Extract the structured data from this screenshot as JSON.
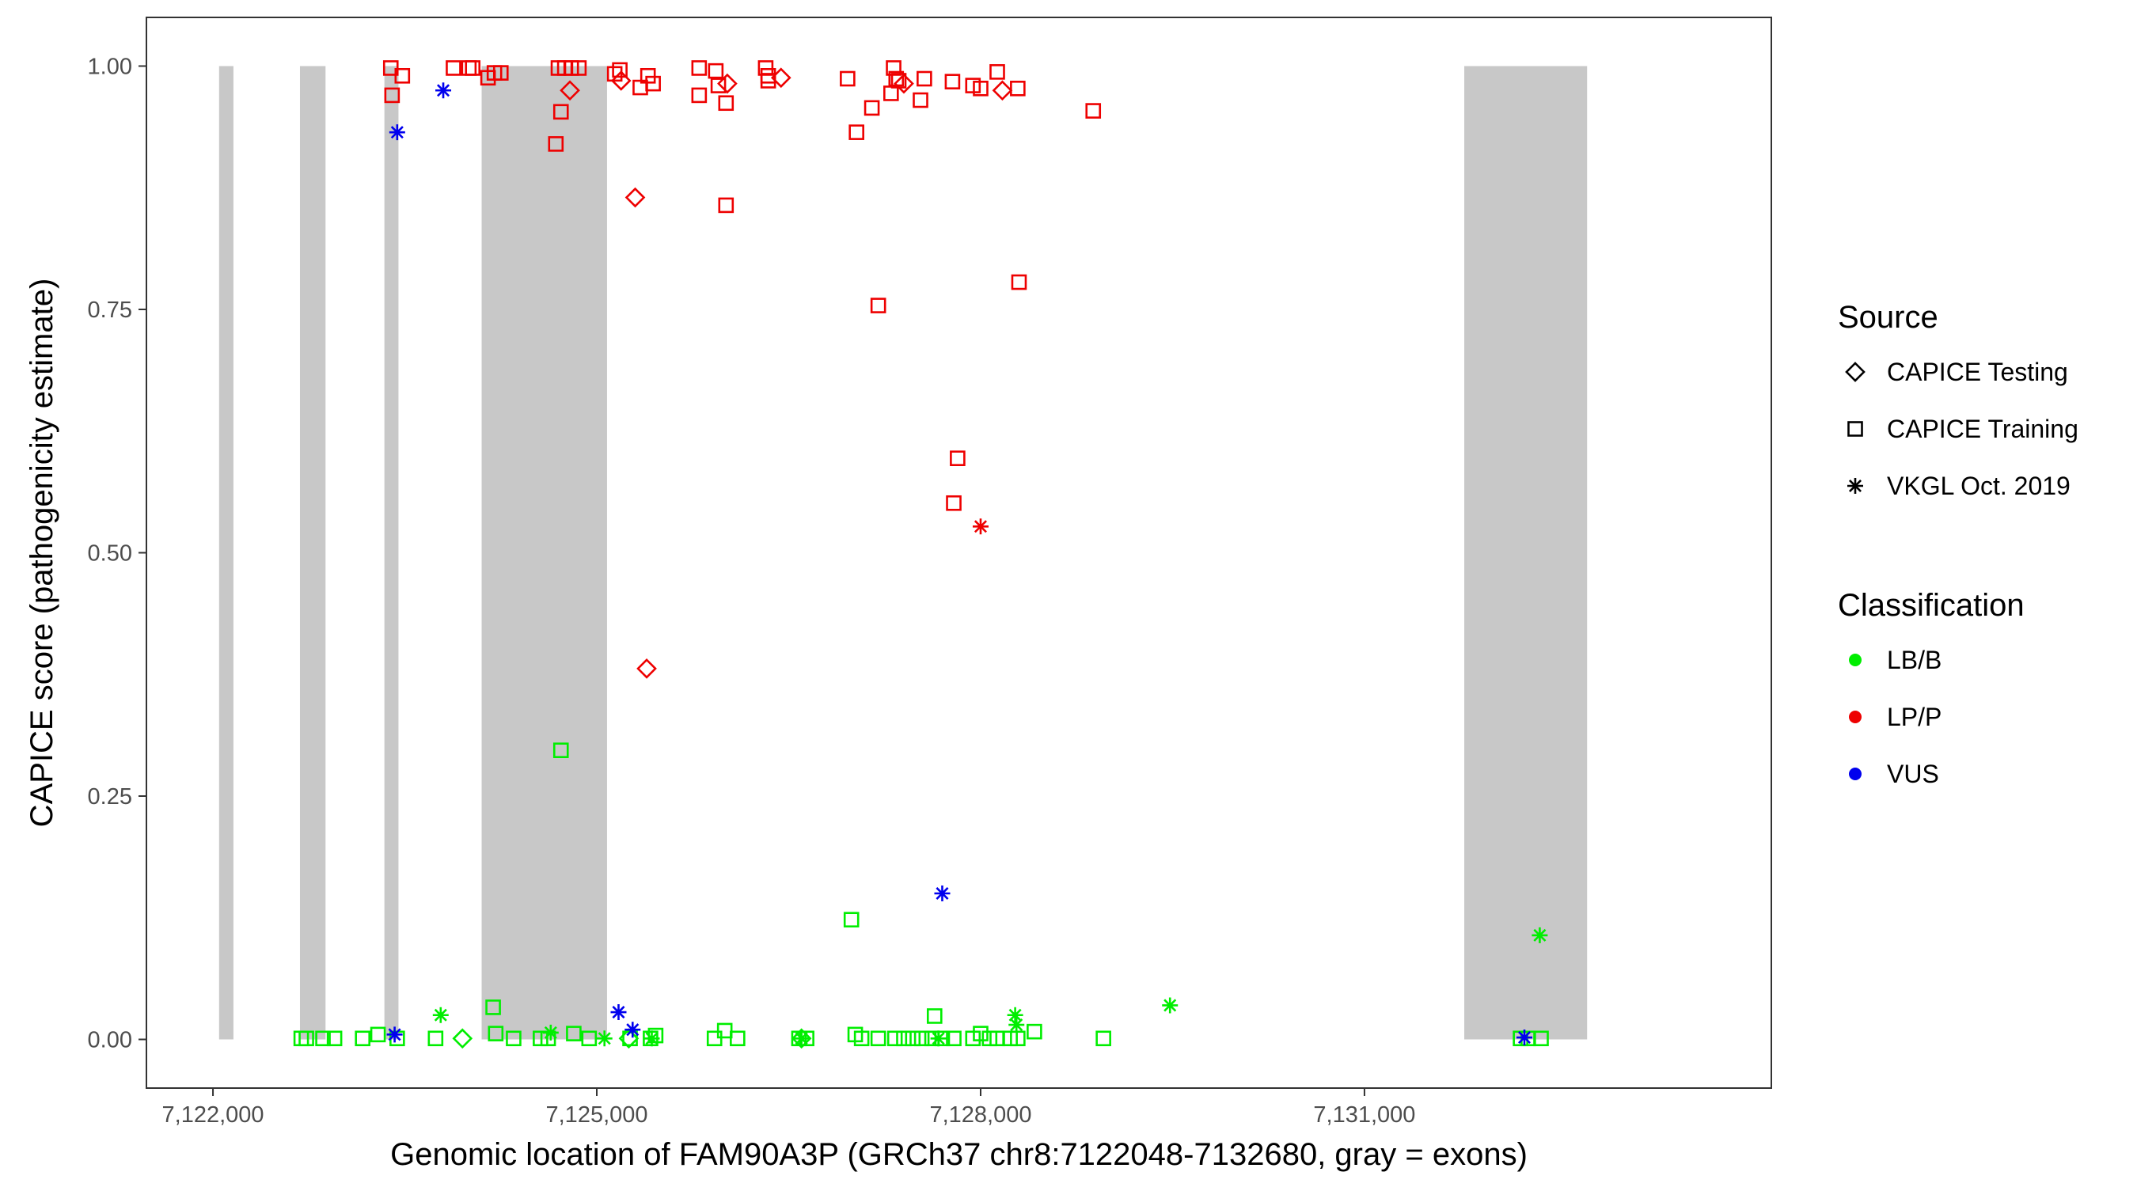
{
  "chart_data": {
    "type": "scatter",
    "xlabel": "Genomic location of FAM90A3P (GRCh37 chr8:7122048-7132680, gray = exons)",
    "ylabel": "CAPICE score (pathogenicity estimate)",
    "xlim": [
      7121480,
      7134180
    ],
    "ylim": [
      -0.05,
      1.05
    ],
    "x_ticks": [
      7122000,
      7125000,
      7128000,
      7131000
    ],
    "x_tick_labels": [
      "7,122,000",
      "7,125,000",
      "7,128,000",
      "7,131,000"
    ],
    "y_ticks": [
      0,
      0.25,
      0.5,
      0.75,
      1.0
    ],
    "y_tick_labels": [
      "0.00",
      "0.25",
      "0.50",
      "0.75",
      "1.00"
    ],
    "grid": false,
    "exons_color": "#c8c8c8",
    "exons": [
      [
        7122048,
        7122160
      ],
      [
        7122680,
        7122880
      ],
      [
        7123340,
        7123450
      ],
      [
        7124100,
        7125080
      ],
      [
        7131780,
        7132740
      ]
    ],
    "legend": {
      "placement": "right",
      "source": {
        "title": "Source",
        "entries": [
          {
            "label": "CAPICE Testing",
            "shape": "diamond"
          },
          {
            "label": "CAPICE Training",
            "shape": "square"
          },
          {
            "label": "VKGL Oct. 2019",
            "shape": "asterisk"
          }
        ]
      },
      "classification": {
        "title": "Classification",
        "entries": [
          {
            "label": "LB/B",
            "color": "#00ee00"
          },
          {
            "label": "LP/P",
            "color": "#ee0000"
          },
          {
            "label": "VUS",
            "color": "#0000ee"
          }
        ]
      }
    },
    "series": [
      {
        "name": "CAPICE Training",
        "shape": "square",
        "class": "LP/P",
        "points": [
          [
            7123390,
            0.998
          ],
          [
            7123400,
            0.97
          ],
          [
            7123480,
            0.99
          ],
          [
            7123880,
            0.998
          ],
          [
            7124000,
            0.998
          ],
          [
            7124030,
            0.998
          ],
          [
            7124150,
            0.988
          ],
          [
            7124200,
            0.993
          ],
          [
            7124250,
            0.993
          ],
          [
            7124680,
            0.92
          ],
          [
            7124720,
            0.953
          ],
          [
            7124700,
            0.998
          ],
          [
            7124750,
            0.998
          ],
          [
            7124800,
            0.998
          ],
          [
            7124860,
            0.998
          ],
          [
            7125140,
            0.992
          ],
          [
            7125180,
            0.996
          ],
          [
            7125340,
            0.978
          ],
          [
            7125400,
            0.99
          ],
          [
            7125440,
            0.982
          ],
          [
            7125800,
            0.998
          ],
          [
            7125800,
            0.97
          ],
          [
            7125930,
            0.995
          ],
          [
            7125950,
            0.98
          ],
          [
            7126010,
            0.962
          ],
          [
            7126010,
            0.857
          ],
          [
            7126320,
            0.998
          ],
          [
            7126340,
            0.99
          ],
          [
            7126340,
            0.985
          ],
          [
            7126960,
            0.987
          ],
          [
            7127030,
            0.932
          ],
          [
            7127150,
            0.957
          ],
          [
            7127200,
            0.754
          ],
          [
            7127300,
            0.972
          ],
          [
            7127320,
            0.998
          ],
          [
            7127340,
            0.987
          ],
          [
            7127360,
            0.985
          ],
          [
            7127530,
            0.965
          ],
          [
            7127560,
            0.987
          ],
          [
            7127820,
            0.597
          ],
          [
            7127790,
            0.551
          ],
          [
            7127780,
            0.984
          ],
          [
            7127940,
            0.98
          ],
          [
            7128000,
            0.977
          ],
          [
            7128130,
            0.994
          ],
          [
            7128290,
            0.977
          ],
          [
            7128300,
            0.778
          ],
          [
            7128880,
            0.954
          ]
        ]
      },
      {
        "name": "CAPICE Training",
        "shape": "square",
        "class": "LB/B",
        "points": [
          [
            7122690,
            0.001
          ],
          [
            7122730,
            0.001
          ],
          [
            7122860,
            0.001
          ],
          [
            7122950,
            0.001
          ],
          [
            7123170,
            0.001
          ],
          [
            7123290,
            0.005
          ],
          [
            7123440,
            0.001
          ],
          [
            7123740,
            0.001
          ],
          [
            7124190,
            0.033
          ],
          [
            7124210,
            0.006
          ],
          [
            7124350,
            0.001
          ],
          [
            7124560,
            0.001
          ],
          [
            7124620,
            0.001
          ],
          [
            7124720,
            0.297
          ],
          [
            7124820,
            0.006
          ],
          [
            7124940,
            0.001
          ],
          [
            7125260,
            0.001
          ],
          [
            7125420,
            0.001
          ],
          [
            7125460,
            0.004
          ],
          [
            7125920,
            0.001
          ],
          [
            7126000,
            0.009
          ],
          [
            7126100,
            0.001
          ],
          [
            7126580,
            0.001
          ],
          [
            7126640,
            0.001
          ],
          [
            7126990,
            0.123
          ],
          [
            7127020,
            0.005
          ],
          [
            7127070,
            0.001
          ],
          [
            7127200,
            0.001
          ],
          [
            7127330,
            0.001
          ],
          [
            7127400,
            0.001
          ],
          [
            7127470,
            0.001
          ],
          [
            7127540,
            0.001
          ],
          [
            7127620,
            0.001
          ],
          [
            7127640,
            0.024
          ],
          [
            7127700,
            0.001
          ],
          [
            7127790,
            0.001
          ],
          [
            7127940,
            0.001
          ],
          [
            7128000,
            0.006
          ],
          [
            7128070,
            0.001
          ],
          [
            7128130,
            0.001
          ],
          [
            7128230,
            0.001
          ],
          [
            7128290,
            0.001
          ],
          [
            7128420,
            0.008
          ],
          [
            7128960,
            0.001
          ],
          [
            7132220,
            0.001
          ],
          [
            7132280,
            0.001
          ],
          [
            7132380,
            0.001
          ]
        ]
      },
      {
        "name": "CAPICE Testing",
        "shape": "diamond",
        "class": "LP/P",
        "points": [
          [
            7124790,
            0.975
          ],
          [
            7125190,
            0.985
          ],
          [
            7125300,
            0.865
          ],
          [
            7125390,
            0.381
          ],
          [
            7126020,
            0.982
          ],
          [
            7126440,
            0.988
          ],
          [
            7127400,
            0.982
          ],
          [
            7128170,
            0.975
          ]
        ]
      },
      {
        "name": "CAPICE Testing",
        "shape": "diamond",
        "class": "LB/B",
        "points": [
          [
            7123950,
            0.001
          ],
          [
            7125250,
            0.001
          ],
          [
            7126600,
            0.001
          ]
        ]
      },
      {
        "name": "VKGL Oct. 2019",
        "shape": "asterisk",
        "class": "LP/P",
        "points": [
          [
            7128000,
            0.527
          ]
        ]
      },
      {
        "name": "VKGL Oct. 2019",
        "shape": "asterisk",
        "class": "LB/B",
        "points": [
          [
            7123780,
            0.025
          ],
          [
            7124640,
            0.007
          ],
          [
            7125060,
            0.001
          ],
          [
            7125430,
            0.001
          ],
          [
            7126600,
            0.001
          ],
          [
            7127670,
            0.001
          ],
          [
            7128270,
            0.025
          ],
          [
            7128280,
            0.015
          ],
          [
            7129480,
            0.035
          ],
          [
            7132370,
            0.107
          ]
        ]
      },
      {
        "name": "VKGL Oct. 2019",
        "shape": "asterisk",
        "class": "VUS",
        "points": [
          [
            7123440,
            0.932
          ],
          [
            7123800,
            0.975
          ],
          [
            7123420,
            0.005
          ],
          [
            7125170,
            0.028
          ],
          [
            7125280,
            0.01
          ],
          [
            7127700,
            0.15
          ],
          [
            7132250,
            0.002
          ]
        ]
      }
    ]
  }
}
